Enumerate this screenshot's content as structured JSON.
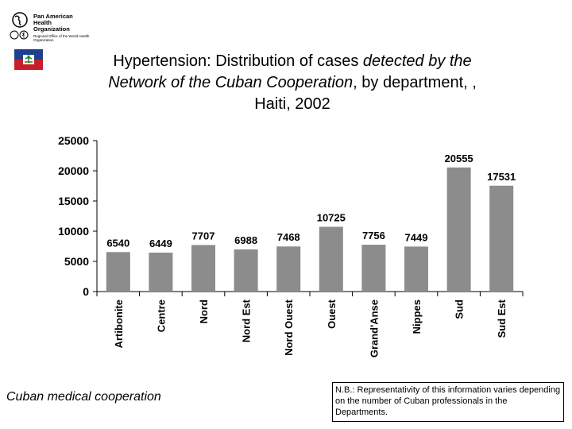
{
  "header": {
    "org_name": "Pan American Health Organization",
    "org_line1": "Pan American",
    "org_line2": "Health",
    "org_line3": "Organization",
    "org_subtitle": "Regional Office of the World Health Organization"
  },
  "title": {
    "line1_plain": "Hypertension: Distribution of cases ",
    "line1_italic": "detected by the",
    "line2_italic": "Network of the Cuban Cooperation",
    "line2_plain": ", by department, ,",
    "line3": "Haiti, 2002"
  },
  "chart_data": {
    "type": "bar",
    "categories": [
      "Artibonite",
      "Centre",
      "Nord",
      "Nord Est",
      "Nord Ouest",
      "Ouest",
      "Grand'Anse",
      "Nippes",
      "Sud",
      "Sud Est"
    ],
    "values": [
      6540,
      6449,
      7707,
      6988,
      7468,
      10725,
      7756,
      7449,
      20555,
      17531
    ],
    "ylim": [
      0,
      25000
    ],
    "yticks": [
      0,
      5000,
      10000,
      15000,
      20000,
      25000
    ],
    "title": "Hypertension: Distribution of cases detected by the Network of the Cuban Cooperation, by department, , Haiti, 2002",
    "xlabel": "",
    "ylabel": "",
    "bar_color": "#8c8c8c",
    "grid": false
  },
  "footer": {
    "left_caption": "Cuban medical cooperation",
    "note": "N.B.: Representativity of this information varies depending on the number of Cuban professionals in the Departments."
  }
}
